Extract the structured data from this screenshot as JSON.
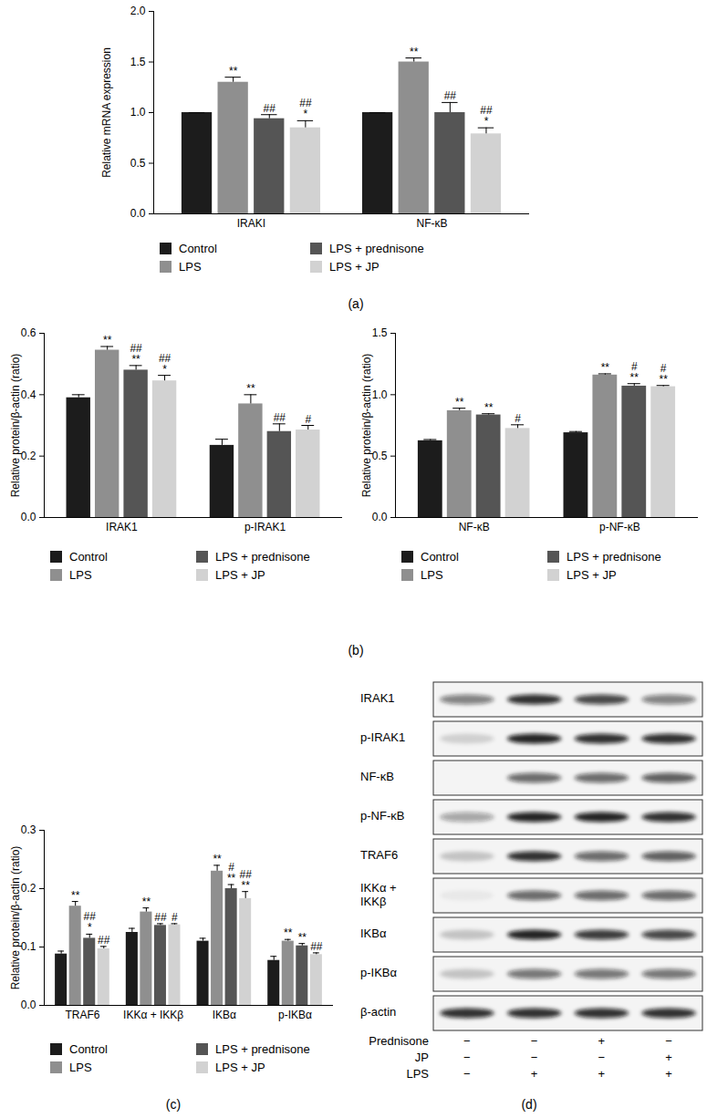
{
  "chart_data": [
    {
      "type": "bar",
      "y_label": "Relative mRNA expression",
      "categories": [
        "IRAKI",
        "NF-κB"
      ],
      "ylim": [
        0,
        2
      ],
      "yticks": [
        {
          "value": 0,
          "label": "0.0"
        },
        0.5,
        {
          "value": 1,
          "label": "1.0"
        },
        1.5,
        {
          "value": 2,
          "label": "2.0"
        }
      ],
      "legend": "bottom",
      "series": [
        {
          "name": "Control",
          "color": "#1c1c1c",
          "values": [
            1.0,
            1.0
          ],
          "errors": [
            0,
            0
          ],
          "significance": [
            [],
            []
          ]
        },
        {
          "name": "LPS",
          "color": "#8f8f8f",
          "values": [
            1.3,
            1.5
          ],
          "errors": [
            0.05,
            0.04
          ],
          "significance": [
            [
              "**"
            ],
            [
              "**"
            ]
          ]
        },
        {
          "name": "LPS + prednisone",
          "color": "#555555",
          "values": [
            0.94,
            1.0
          ],
          "errors": [
            0.04,
            0.1
          ],
          "significance": [
            [
              "##"
            ],
            [
              "##"
            ]
          ]
        },
        {
          "name": "LPS + JP",
          "color": "#d2d2d2",
          "values": [
            0.85,
            0.79
          ],
          "errors": [
            0.07,
            0.06
          ],
          "significance": [
            [
              "##",
              "*"
            ],
            [
              "##",
              "*"
            ]
          ]
        }
      ]
    },
    {
      "type": "bar",
      "y_label": "Relative protein/β-actin (ratio)",
      "categories": [
        "IRAK1",
        "p-IRAK1"
      ],
      "ylim": [
        0,
        0.6
      ],
      "yticks": [
        {
          "value": 0,
          "label": "0.0"
        },
        0.2,
        0.4,
        0.6
      ],
      "legend": "bottom",
      "series": [
        {
          "name": "Control",
          "color": "#1c1c1c",
          "values": [
            0.39,
            0.235
          ],
          "errors": [
            0.01,
            0.02
          ],
          "significance": [
            [],
            []
          ]
        },
        {
          "name": "LPS",
          "color": "#8f8f8f",
          "values": [
            0.545,
            0.37
          ],
          "errors": [
            0.012,
            0.03
          ],
          "significance": [
            [
              "**"
            ],
            [
              "**"
            ]
          ]
        },
        {
          "name": "LPS + prednisone",
          "color": "#555555",
          "values": [
            0.48,
            0.28
          ],
          "errors": [
            0.015,
            0.025
          ],
          "significance": [
            [
              "##",
              "**"
            ],
            [
              "##"
            ]
          ]
        },
        {
          "name": "LPS + JP",
          "color": "#d2d2d2",
          "values": [
            0.445,
            0.285
          ],
          "errors": [
            0.018,
            0.015
          ],
          "significance": [
            [
              "##",
              "*"
            ],
            [
              "#"
            ]
          ]
        }
      ]
    },
    {
      "type": "bar",
      "y_label": "Relative protein/β-actin (ratio)",
      "categories": [
        "NF-κB",
        "p-NF-κB"
      ],
      "ylim": [
        0,
        1.5
      ],
      "yticks": [
        {
          "value": 0,
          "label": "0.0"
        },
        0.5,
        {
          "value": 1,
          "label": "1.0"
        },
        1.5
      ],
      "legend": "bottom",
      "series": [
        {
          "name": "Control",
          "color": "#1c1c1c",
          "values": [
            0.625,
            0.69
          ],
          "errors": [
            0.01,
            0.01
          ],
          "significance": [
            [],
            []
          ]
        },
        {
          "name": "LPS",
          "color": "#8f8f8f",
          "values": [
            0.87,
            1.16
          ],
          "errors": [
            0.02,
            0.01
          ],
          "significance": [
            [
              "**"
            ],
            [
              "**"
            ]
          ]
        },
        {
          "name": "LPS + prednisone",
          "color": "#555555",
          "values": [
            0.835,
            1.07
          ],
          "errors": [
            0.01,
            0.02
          ],
          "significance": [
            [
              "**"
            ],
            [
              "#",
              "**"
            ]
          ]
        },
        {
          "name": "LPS + JP",
          "color": "#d2d2d2",
          "values": [
            0.725,
            1.065
          ],
          "errors": [
            0.03,
            0.01
          ],
          "significance": [
            [
              "#"
            ],
            [
              "#",
              "**"
            ]
          ]
        }
      ]
    },
    {
      "type": "bar",
      "y_label": "Relative protein/β-actin (ratio)",
      "categories": [
        "TRAF6",
        "IKKα + IKKβ",
        "IKBα",
        "p-IKBα"
      ],
      "ylim": [
        0,
        0.3
      ],
      "yticks": [
        {
          "value": 0,
          "label": "0.0"
        },
        0.1,
        0.2,
        0.3
      ],
      "legend": "bottom",
      "series": [
        {
          "name": "Control",
          "color": "#1c1c1c",
          "values": [
            0.088,
            0.125,
            0.11,
            0.077
          ],
          "errors": [
            0.005,
            0.007,
            0.005,
            0.007
          ],
          "significance": [
            [],
            [],
            [],
            []
          ]
        },
        {
          "name": "LPS",
          "color": "#8f8f8f",
          "values": [
            0.17,
            0.16,
            0.23,
            0.11
          ],
          "errors": [
            0.008,
            0.007,
            0.01,
            0.003
          ],
          "significance": [
            [
              "**"
            ],
            [
              "**"
            ],
            [
              "**"
            ],
            [
              "**"
            ]
          ]
        },
        {
          "name": "LPS + prednisone",
          "color": "#555555",
          "values": [
            0.115,
            0.137,
            0.2,
            0.102
          ],
          "errors": [
            0.007,
            0.003,
            0.007,
            0.004
          ],
          "significance": [
            [
              "##",
              "*"
            ],
            [
              "##"
            ],
            [
              "#",
              "**"
            ],
            [
              "**"
            ]
          ]
        },
        {
          "name": "LPS + JP",
          "color": "#d2d2d2",
          "values": [
            0.097,
            0.138,
            0.183,
            0.087
          ],
          "errors": [
            0.004,
            0.002,
            0.012,
            0.003
          ],
          "significance": [
            [
              "##"
            ],
            [
              "#"
            ],
            [
              "##",
              "**"
            ],
            [
              "##"
            ]
          ]
        }
      ]
    }
  ],
  "panel_labels": [
    "(a)",
    "(b)",
    "(c)",
    "(d)"
  ],
  "blot": {
    "rows": [
      {
        "label": "IRAK1",
        "bands": [
          0.5,
          0.85,
          0.75,
          0.5
        ]
      },
      {
        "label": "p-IRAK1",
        "bands": [
          0.15,
          0.9,
          0.85,
          0.85
        ]
      },
      {
        "label": "NF-κB",
        "bands": [
          0,
          0.6,
          0.6,
          0.65
        ]
      },
      {
        "label": "p-NF-κB",
        "bands": [
          0.35,
          0.9,
          0.9,
          0.85
        ]
      },
      {
        "label": "TRAF6",
        "bands": [
          0.2,
          0.85,
          0.6,
          0.65
        ]
      },
      {
        "label": "IKKα +\nIKKβ",
        "bands": [
          0.05,
          0.6,
          0.6,
          0.6
        ]
      },
      {
        "label": "IKBα",
        "bands": [
          0.2,
          0.9,
          0.8,
          0.75
        ]
      },
      {
        "label": "p-IKBα",
        "bands": [
          0.2,
          0.55,
          0.55,
          0.55
        ]
      },
      {
        "label": "β-actin",
        "bands": [
          0.85,
          0.85,
          0.85,
          0.85
        ]
      }
    ],
    "treatments": [
      {
        "name": "Prednisone",
        "signs": [
          "−",
          "−",
          "+",
          "−"
        ]
      },
      {
        "name": "JP",
        "signs": [
          "−",
          "−",
          "−",
          "+"
        ]
      },
      {
        "name": "LPS",
        "signs": [
          "−",
          "+",
          "+",
          "+"
        ]
      }
    ]
  }
}
